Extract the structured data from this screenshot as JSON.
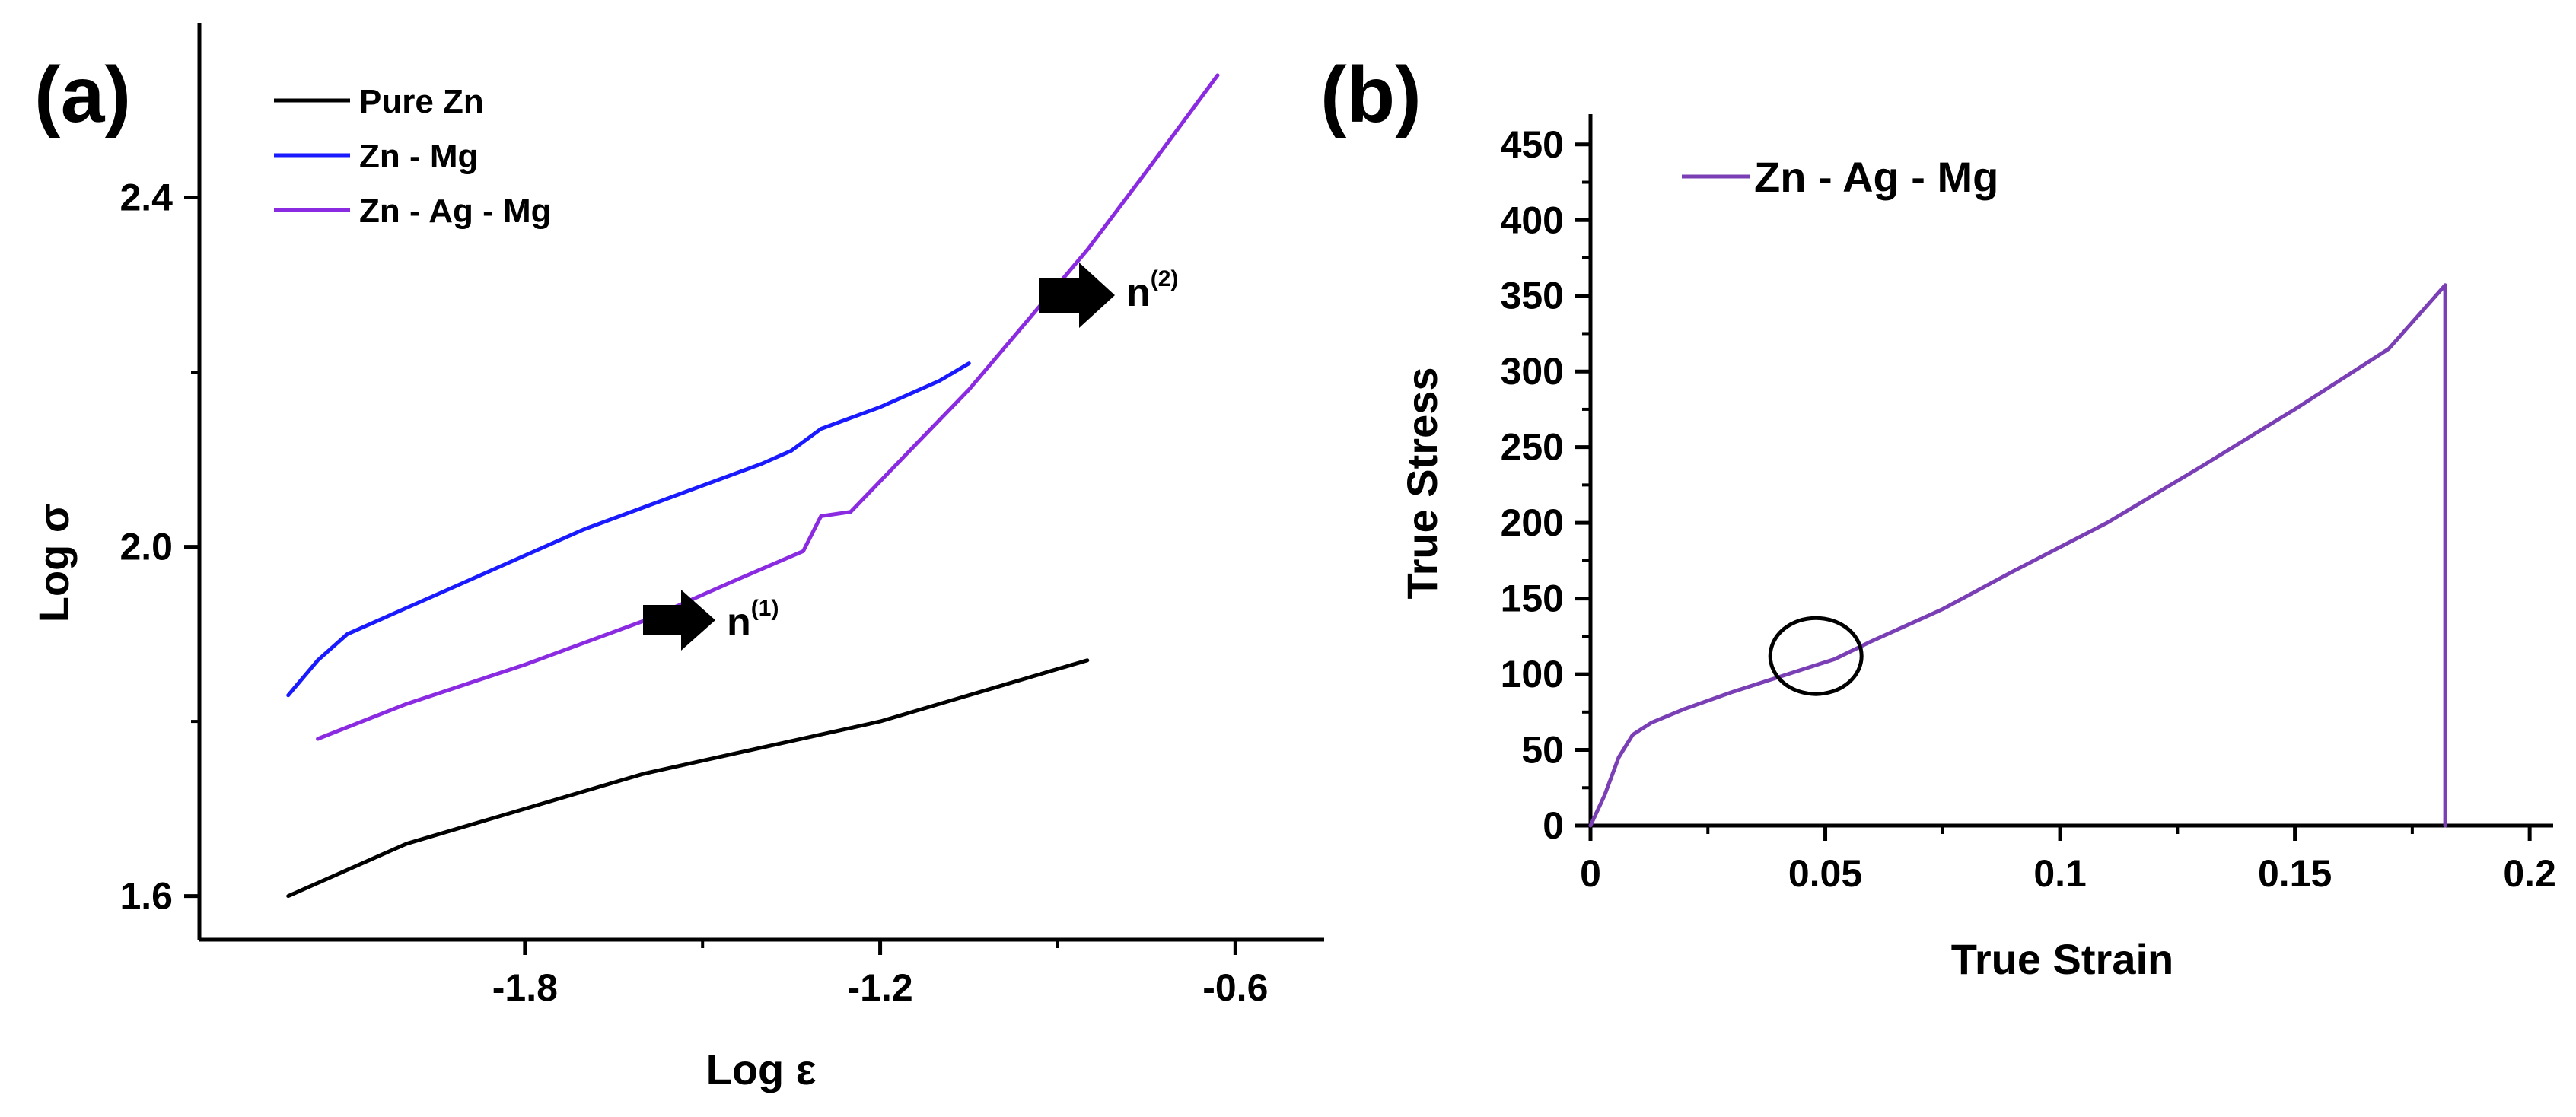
{
  "chart_data": [
    {
      "panel": "(a)",
      "type": "line",
      "xlabel": "Log ε",
      "ylabel": "Log σ",
      "xlim": [
        -2.35,
        -0.45
      ],
      "ylim": [
        1.55,
        2.6
      ],
      "xticks": [
        -1.8,
        -1.2,
        -0.6
      ],
      "xtick_labels": [
        "-1.8",
        "-1.2",
        "-0.6"
      ],
      "yticks": [
        1.6,
        2.0,
        2.4
      ],
      "ytick_labels": [
        "1.6",
        "2.0",
        "2.4"
      ],
      "legend_position": "top-left",
      "series": [
        {
          "name": "Pure Zn",
          "color": "#000000",
          "x": [
            -2.2,
            -2.1,
            -2.0,
            -1.9,
            -1.8,
            -1.7,
            -1.6,
            -1.5,
            -1.4,
            -1.3,
            -1.2,
            -1.1,
            -1.0,
            -0.9,
            -0.85
          ],
          "y": [
            1.6,
            1.63,
            1.66,
            1.68,
            1.7,
            1.72,
            1.74,
            1.755,
            1.77,
            1.785,
            1.8,
            1.82,
            1.84,
            1.86,
            1.87
          ]
        },
        {
          "name": "Zn - Mg",
          "color": "#1a1aff",
          "x": [
            -2.2,
            -2.15,
            -2.1,
            -2.0,
            -1.9,
            -1.8,
            -1.7,
            -1.6,
            -1.5,
            -1.4,
            -1.35,
            -1.3,
            -1.2,
            -1.1,
            -1.05
          ],
          "y": [
            1.83,
            1.87,
            1.9,
            1.93,
            1.96,
            1.99,
            2.02,
            2.045,
            2.07,
            2.095,
            2.11,
            2.135,
            2.16,
            2.19,
            2.21
          ]
        },
        {
          "name": "Zn - Ag - Mg",
          "color": "#8a2be2",
          "x": [
            -2.15,
            -2.0,
            -1.8,
            -1.6,
            -1.45,
            -1.33,
            -1.3,
            -1.25,
            -1.15,
            -1.05,
            -0.95,
            -0.85,
            -0.75,
            -0.63
          ],
          "y": [
            1.78,
            1.82,
            1.865,
            1.915,
            1.96,
            1.995,
            2.035,
            2.04,
            2.11,
            2.18,
            2.26,
            2.34,
            2.43,
            2.54
          ]
        }
      ],
      "annotations": [
        {
          "label": "n",
          "superscript": "(1)",
          "x": -1.6,
          "y": 1.92
        },
        {
          "label": "n",
          "superscript": "(2)",
          "x": -0.85,
          "y": 2.31
        }
      ]
    },
    {
      "panel": "(b)",
      "type": "line",
      "xlabel": "True Strain",
      "ylabel": "True Stress",
      "xlim": [
        0,
        0.205
      ],
      "ylim": [
        0,
        470
      ],
      "xticks": [
        0,
        0.05,
        0.1,
        0.15,
        0.2
      ],
      "xtick_labels": [
        "0",
        "0.05",
        "0.1",
        "0.15",
        "0.2"
      ],
      "yticks": [
        0,
        50,
        100,
        150,
        200,
        250,
        300,
        350,
        400,
        450
      ],
      "ytick_labels": [
        "0",
        "50",
        "100",
        "150",
        "200",
        "250",
        "300",
        "350",
        "400",
        "450"
      ],
      "legend_position": "top-left",
      "series": [
        {
          "name": "Zn - Ag - Mg",
          "color": "#7b3fb5",
          "x": [
            0,
            0.003,
            0.006,
            0.009,
            0.013,
            0.02,
            0.03,
            0.04,
            0.048,
            0.052,
            0.06,
            0.075,
            0.09,
            0.11,
            0.13,
            0.15,
            0.17,
            0.182,
            0.182
          ],
          "y": [
            0,
            20,
            45,
            60,
            68,
            77,
            88,
            98,
            106,
            110,
            122,
            143,
            168,
            200,
            237,
            275,
            315,
            357,
            0
          ]
        }
      ],
      "annotations": [
        {
          "shape": "circle",
          "x": 0.048,
          "y": 112
        }
      ]
    }
  ],
  "labels": {
    "panel_a": "(a)",
    "panel_b": "(b)"
  }
}
